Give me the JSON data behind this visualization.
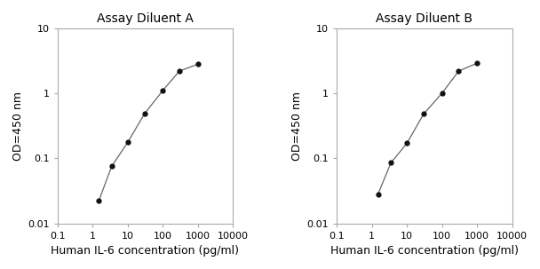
{
  "panel_a": {
    "title": "Assay Diluent A",
    "x": [
      1.5,
      3.5,
      10,
      30,
      100,
      300,
      1000
    ],
    "y": [
      0.022,
      0.075,
      0.175,
      0.48,
      1.1,
      2.2,
      2.8
    ]
  },
  "panel_b": {
    "title": "Assay Diluent B",
    "x": [
      1.5,
      3.5,
      10,
      30,
      100,
      300,
      1000
    ],
    "y": [
      0.028,
      0.085,
      0.17,
      0.48,
      1.0,
      2.2,
      2.9
    ]
  },
  "xlabel": "Human IL-6 concentration (pg/ml)",
  "ylabel": "OD=450 nm",
  "xlim": [
    0.1,
    10000
  ],
  "ylim": [
    0.01,
    10
  ],
  "xticks": [
    0.1,
    1,
    10,
    100,
    1000,
    10000
  ],
  "xtick_labels": [
    "0.1",
    "1",
    "10",
    "100",
    "1000",
    "10000"
  ],
  "yticks": [
    0.01,
    0.1,
    1,
    10
  ],
  "ytick_labels": [
    "0.01",
    "0.1",
    "1",
    "10"
  ],
  "line_color": "#666666",
  "marker_color": "#111111",
  "background_color": "#ffffff",
  "spine_color": "#aaaaaa",
  "title_fontsize": 10,
  "label_fontsize": 9,
  "tick_fontsize": 8
}
